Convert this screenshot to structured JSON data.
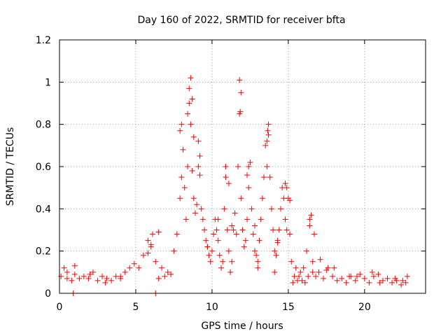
{
  "chart_data": {
    "type": "scatter",
    "title": "Day 160 of 2022, SRMTID for receiver bfta",
    "xlabel": "GPS time / hours",
    "ylabel": "SRMTID / TECUs",
    "xlim": [
      0,
      24
    ],
    "ylim": [
      0,
      1.2
    ],
    "xticks": [
      "0",
      "5",
      "10",
      "15",
      "20"
    ],
    "yticks": [
      "0",
      "0.2",
      "0.4",
      "0.6",
      "0.8",
      "1",
      "1.2"
    ],
    "grid": true,
    "marker": "+",
    "color": "#ff0000",
    "series": [
      {
        "name": "SRMTID",
        "x": [
          0.1,
          0.3,
          0.5,
          0.8,
          1.0,
          1.3,
          1.6,
          1.9,
          2.2,
          2.5,
          2.8,
          3.1,
          3.4,
          3.7,
          4.0,
          4.3,
          4.6,
          4.9,
          5.2,
          5.5,
          5.8,
          6.0,
          6.1,
          6.3,
          6.5,
          6.7,
          6.9,
          7.1,
          7.3,
          7.5,
          7.7,
          7.9,
          8.0,
          8.1,
          8.2,
          8.3,
          8.4,
          8.5,
          8.6,
          8.7,
          8.8,
          8.9,
          9.0,
          9.1,
          9.2,
          9.3,
          9.4,
          9.5,
          9.6,
          9.7,
          9.8,
          9.9,
          10.0,
          10.1,
          10.2,
          10.3,
          10.4,
          10.5,
          10.6,
          10.7,
          10.8,
          10.9,
          11.0,
          11.1,
          11.2,
          11.3,
          11.4,
          11.5,
          11.6,
          11.7,
          11.8,
          11.9,
          12.0,
          12.1,
          12.2,
          12.3,
          12.4,
          12.5,
          12.6,
          12.7,
          12.8,
          12.9,
          13.0,
          13.1,
          13.2,
          13.3,
          13.4,
          13.5,
          13.6,
          13.7,
          13.8,
          13.9,
          14.0,
          14.1,
          14.2,
          14.3,
          14.4,
          14.5,
          14.6,
          14.7,
          14.8,
          14.9,
          15.0,
          15.1,
          15.2,
          15.4,
          15.6,
          15.8,
          16.0,
          16.2,
          16.4,
          16.6,
          16.8,
          17.0,
          17.3,
          17.6,
          17.9,
          18.2,
          18.5,
          18.8,
          19.1,
          19.4,
          19.7,
          20.0,
          20.3,
          20.6,
          20.9,
          21.2,
          21.5,
          21.8,
          22.1,
          22.4,
          22.7,
          8.6,
          8.5,
          8.7,
          8.4,
          8.8,
          11.8,
          11.9,
          11.85,
          13.7,
          13.65,
          13.6,
          16.5,
          16.4,
          6.5,
          6.0,
          5.8,
          7.9,
          8.0,
          9.1,
          9.2,
          10.9,
          11.1,
          12.4,
          12.3,
          14.8,
          14.9,
          15.1,
          0.9,
          6.3,
          1.0,
          3.0,
          4.0,
          17.5,
          19.0,
          20.5,
          22.0,
          0.5,
          2.0,
          13.0,
          12.8,
          9.7,
          10.4,
          11.3,
          14.3,
          14.1,
          15.3,
          15.5,
          15.7,
          15.9,
          16.1,
          16.3,
          16.6,
          16.7,
          17.1,
          18.0,
          19.5,
          21.0,
          22.5,
          22.8
        ],
        "y": [
          0.08,
          0.12,
          0.07,
          0.06,
          0.09,
          0.07,
          0.08,
          0.07,
          0.1,
          0.06,
          0.08,
          0.07,
          0.06,
          0.08,
          0.07,
          0.1,
          0.12,
          0.14,
          0.12,
          0.18,
          0.25,
          0.22,
          0.28,
          0.15,
          0.07,
          0.12,
          0.08,
          0.1,
          0.09,
          0.2,
          0.28,
          0.45,
          0.55,
          0.68,
          0.5,
          0.35,
          0.6,
          0.9,
          0.8,
          0.58,
          0.45,
          0.38,
          0.42,
          0.6,
          0.56,
          0.4,
          0.35,
          0.3,
          0.25,
          0.22,
          0.18,
          0.15,
          0.2,
          0.28,
          0.35,
          0.3,
          0.25,
          0.18,
          0.12,
          0.15,
          0.4,
          0.55,
          0.3,
          0.2,
          0.1,
          0.15,
          0.3,
          0.38,
          0.28,
          0.6,
          0.85,
          0.45,
          0.3,
          0.22,
          0.25,
          0.35,
          0.5,
          0.62,
          0.4,
          0.28,
          0.2,
          0.18,
          0.15,
          0.25,
          0.35,
          0.45,
          0.55,
          0.7,
          0.6,
          0.75,
          0.55,
          0.4,
          0.3,
          0.2,
          0.18,
          0.25,
          0.3,
          0.4,
          0.5,
          0.45,
          0.35,
          0.3,
          0.45,
          0.28,
          0.15,
          0.08,
          0.06,
          0.1,
          0.12,
          0.2,
          0.35,
          0.15,
          0.08,
          0.1,
          0.07,
          0.12,
          0.08,
          0.06,
          0.07,
          0.05,
          0.08,
          0.06,
          0.09,
          0.07,
          0.05,
          0.08,
          0.09,
          0.06,
          0.07,
          0.05,
          0.06,
          0.04,
          0.05,
          1.02,
          0.97,
          0.92,
          0.85,
          0.74,
          1.01,
          0.95,
          0.86,
          0.8,
          0.77,
          0.72,
          0.37,
          0.32,
          0.29,
          0.23,
          0.19,
          0.77,
          0.8,
          0.72,
          0.65,
          0.6,
          0.52,
          0.6,
          0.56,
          0.52,
          0.5,
          0.44,
          0.0,
          0.0,
          0.13,
          0.05,
          0.08,
          0.11,
          0.08,
          0.1,
          0.07,
          0.1,
          0.09,
          0.12,
          0.32,
          0.22,
          0.35,
          0.32,
          0.24,
          0.1,
          0.05,
          0.12,
          0.08,
          0.06,
          0.05,
          0.08,
          0.1,
          0.28,
          0.16,
          0.12,
          0.08,
          0.05,
          0.06,
          0.08
        ]
      }
    ]
  }
}
